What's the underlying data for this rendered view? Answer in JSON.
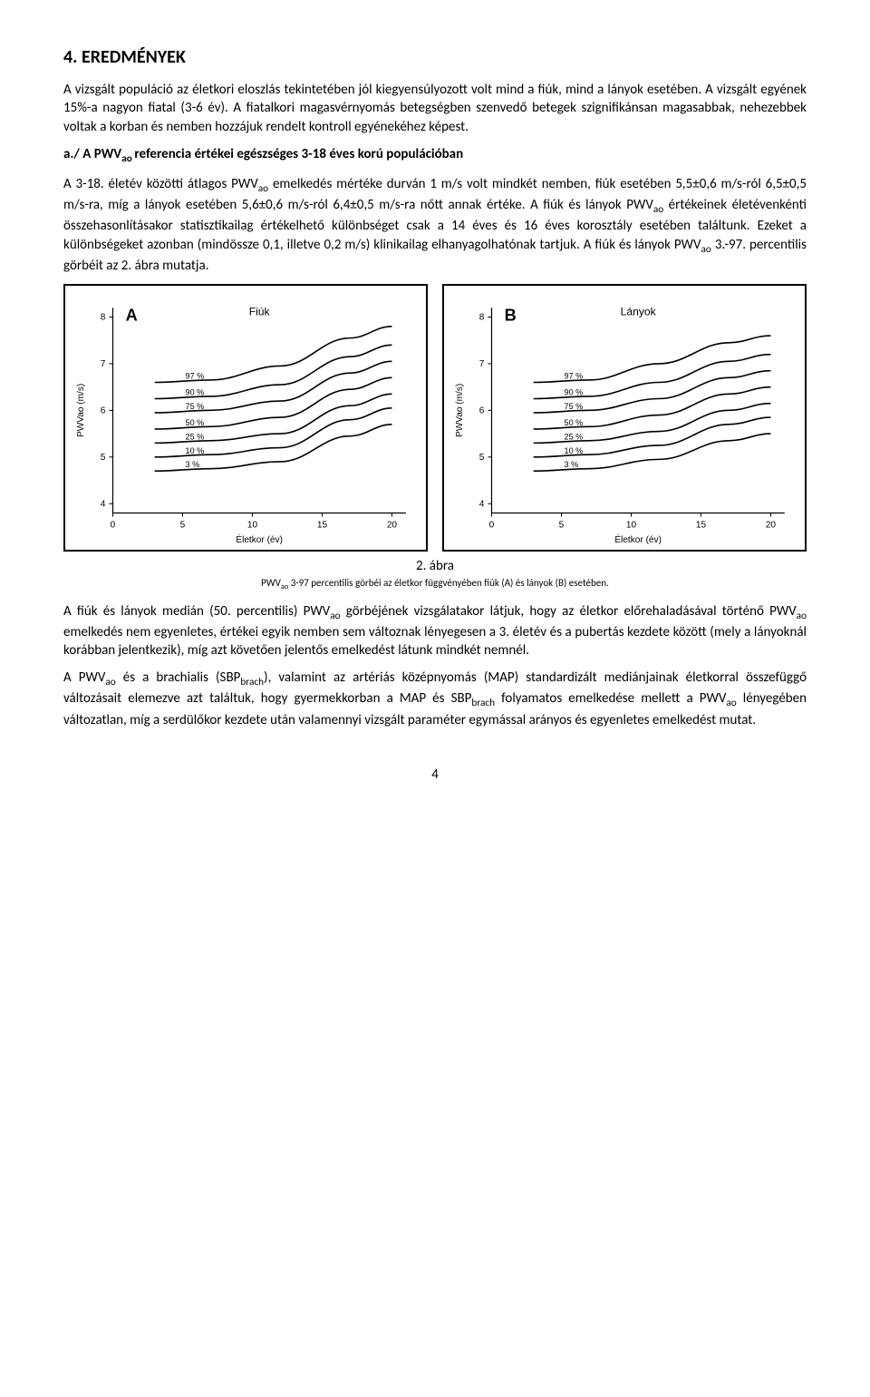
{
  "heading": "4. EREDMÉNYEK",
  "para1": "A vizsgált populáció az életkori eloszlás tekintetében jól kiegyensúlyozott volt mind a fiúk, mind a lányok esetében. A vizsgált egyének 15%-a nagyon fiatal (3-6 év). A fiatalkori magasvérnyomás betegségben szenvedő betegek szignifikánsan magasabbak, nehezebbek voltak a korban és nemben hozzájuk rendelt kontroll egyénekéhez képest.",
  "subheading_prefix": "a./ A PWV",
  "subheading_sub": "ao ",
  "subheading_rest": "referencia értékei egészséges 3-18 éves korú populációban",
  "para2_a": "A 3-18. életév közötti átlagos PWV",
  "para2_b": " emelkedés mértéke durván 1 m/s volt mindkét nemben, fiúk esetében 5,5±0,6 m/s-ról 6,5±0,5 m/s-ra, míg a lányok esetében 5,6±0,6 m/s-ról 6,4±0,5 m/s-ra nőtt annak értéke. A fiúk és lányok PWV",
  "para2_c": " értékeinek életévenkénti összehasonlításakor statisztikailag értékelhető különbséget csak a 14 éves és 16 éves korosztály esetében találtunk. Ezeket a különbségeket azonban (mindössze 0,1, illetve 0,2 m/s) klinikailag elhanyagolhatónak tartjuk. A fiúk és lányok PWV",
  "para2_d": " 3.-97. percentilis görbéit az 2. ábra mutatja.",
  "fig_caption_title": "2. ábra",
  "fig_caption_sub_a": "PWV",
  "fig_caption_sub_b": " 3-97 percentilis görbéi az életkor függvényében fiúk (A) és lányok (B) esetében.",
  "para3_a": "A fiúk és lányok medián (50. percentilis) PWV",
  "para3_b": " görbéjének vizsgálatakor látjuk, hogy az életkor előrehaladásával történő PWV",
  "para3_c": " emelkedés nem egyenletes, értékei egyik nemben sem változnak lényegesen a 3. életév és a pubertás kezdete között (mely a lányoknál korábban jelentkezik), míg azt követően jelentős emelkedést látunk mindkét nemnél.",
  "para4_a": "A PWV",
  "para4_b": " és a brachialis (SBP",
  "para4_c": "), valamint az artériás középnyomás (MAP) standardizált mediánjainak életkorral összefüggő változásait elemezve azt találtuk, hogy gyermekkorban a MAP és SBP",
  "para4_d": " folyamatos emelkedése mellett a PWV",
  "para4_e": " lényegében változatlan, míg a serdülőkor kezdete után valamennyi vizsgált paraméter egymással arányos és egyenletes emelkedést mutat.",
  "sub_ao": "ao",
  "sub_brach": "brach",
  "page_number": "4",
  "charts": {
    "common": {
      "xmin": 0,
      "xmax": 21,
      "ymin": 3.8,
      "ymax": 8.2,
      "xticks": [
        0,
        5,
        10,
        15,
        20
      ],
      "yticks": [
        4,
        5,
        6,
        7,
        8
      ],
      "xlabel": "Életkor (év)",
      "ylabel": "PWVao (m/s)",
      "axis_color": "#000000",
      "line_color": "#000000",
      "line_width": 1.6,
      "tick_fontsize": 10,
      "label_fontsize": 10,
      "title_fontsize": 12,
      "panel_fontsize": 18,
      "pct_fontsize": 9,
      "pct_labels": [
        "97 %",
        "90 %",
        "75 %",
        "50 %",
        "25 %",
        "10 %",
        "3 %"
      ]
    },
    "A": {
      "panel": "A",
      "title": "Fiúk",
      "curves": [
        {
          "pct": "97",
          "y0": 6.6,
          "y1": 6.65,
          "y2": 6.95,
          "y3": 7.55,
          "y4": 7.8
        },
        {
          "pct": "90",
          "y0": 6.25,
          "y1": 6.3,
          "y2": 6.55,
          "y3": 7.15,
          "y4": 7.4
        },
        {
          "pct": "75",
          "y0": 5.95,
          "y1": 6.0,
          "y2": 6.2,
          "y3": 6.8,
          "y4": 7.05
        },
        {
          "pct": "50",
          "y0": 5.6,
          "y1": 5.65,
          "y2": 5.85,
          "y3": 6.45,
          "y4": 6.7
        },
        {
          "pct": "25",
          "y0": 5.3,
          "y1": 5.35,
          "y2": 5.5,
          "y3": 6.1,
          "y4": 6.35
        },
        {
          "pct": "10",
          "y0": 5.0,
          "y1": 5.05,
          "y2": 5.2,
          "y3": 5.8,
          "y4": 6.05
        },
        {
          "pct": "3",
          "y0": 4.7,
          "y1": 4.75,
          "y2": 4.9,
          "y3": 5.45,
          "y4": 5.7
        }
      ]
    },
    "B": {
      "panel": "B",
      "title": "Lányok",
      "curves": [
        {
          "pct": "97",
          "y0": 6.6,
          "y1": 6.65,
          "y2": 7.0,
          "y3": 7.45,
          "y4": 7.6
        },
        {
          "pct": "90",
          "y0": 6.25,
          "y1": 6.3,
          "y2": 6.6,
          "y3": 7.05,
          "y4": 7.2
        },
        {
          "pct": "75",
          "y0": 5.95,
          "y1": 6.0,
          "y2": 6.25,
          "y3": 6.7,
          "y4": 6.85
        },
        {
          "pct": "50",
          "y0": 5.6,
          "y1": 5.65,
          "y2": 5.9,
          "y3": 6.35,
          "y4": 6.5
        },
        {
          "pct": "25",
          "y0": 5.3,
          "y1": 5.35,
          "y2": 5.55,
          "y3": 6.0,
          "y4": 6.15
        },
        {
          "pct": "10",
          "y0": 5.0,
          "y1": 5.05,
          "y2": 5.25,
          "y3": 5.7,
          "y4": 5.85
        },
        {
          "pct": "3",
          "y0": 4.7,
          "y1": 4.75,
          "y2": 4.95,
          "y3": 5.35,
          "y4": 5.5
        }
      ]
    }
  }
}
